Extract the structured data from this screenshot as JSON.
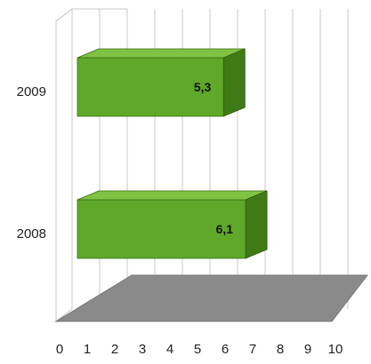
{
  "chart_data": {
    "type": "bar",
    "orientation": "horizontal",
    "three_d": true,
    "categories": [
      "2009",
      "2008"
    ],
    "values": [
      5.3,
      6.1
    ],
    "data_labels": [
      "5,3",
      "6,1"
    ],
    "x_ticks": [
      "0",
      "1",
      "2",
      "3",
      "4",
      "5",
      "6",
      "7",
      "8",
      "9",
      "10"
    ],
    "xlim": [
      0,
      10
    ],
    "grid": true,
    "legend": "none",
    "title": "",
    "xlabel": "",
    "ylabel": "",
    "colors": {
      "bar_front": "#5fa82a",
      "bar_top": "#7fc244",
      "bar_side": "#3f7a17",
      "floor": "#8a8a8a",
      "grid": "#c8c8c8"
    }
  }
}
